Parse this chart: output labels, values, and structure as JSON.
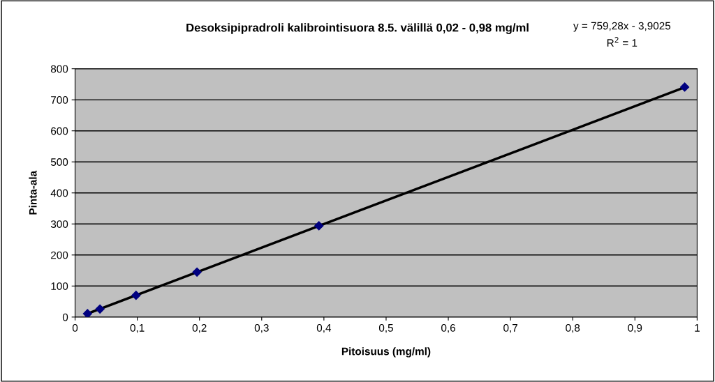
{
  "chart_data": {
    "type": "scatter",
    "title": "Desoksipipradroli kalibrointisuora 8.5. välillä 0,02 - 0,98 mg/ml",
    "xlabel": "Pitoisuus (mg/ml)",
    "ylabel": "Pinta-ala",
    "annotations": [
      "y = 759,28x - 3,9025",
      "R$^{2}$ = 1"
    ],
    "series": [
      {
        "color": "#000080",
        "marker": "diamond",
        "x": [
          0.02,
          0.04,
          0.098,
          0.196,
          0.392,
          0.98
        ],
        "values": [
          11,
          26,
          70,
          145,
          294,
          741
        ]
      },
      {
        "type": "line",
        "color": "#000000",
        "marker": "none",
        "line_style": "solid",
        "x": [
          0.02,
          0.98
        ],
        "values": [
          11,
          740
        ]
      }
    ],
    "xlim": [
      0,
      1
    ],
    "ylim": [
      0,
      800
    ],
    "xticks": [
      0,
      {
        "value": 0.1,
        "label": "0,1"
      },
      {
        "value": 0.2,
        "label": "0,2"
      },
      {
        "value": 0.3,
        "label": "0,3"
      },
      {
        "value": 0.4,
        "label": "0,4"
      },
      {
        "value": 0.5,
        "label": "0,5"
      },
      {
        "value": 0.6,
        "label": "0,6"
      },
      {
        "value": 0.7,
        "label": "0,7"
      },
      {
        "value": 0.8,
        "label": "0,8"
      },
      {
        "value": 0.9,
        "label": "0,9"
      },
      1
    ],
    "yticks": [
      0,
      100,
      200,
      300,
      400,
      500,
      600,
      700,
      800
    ],
    "grid": "y",
    "legend": false
  }
}
